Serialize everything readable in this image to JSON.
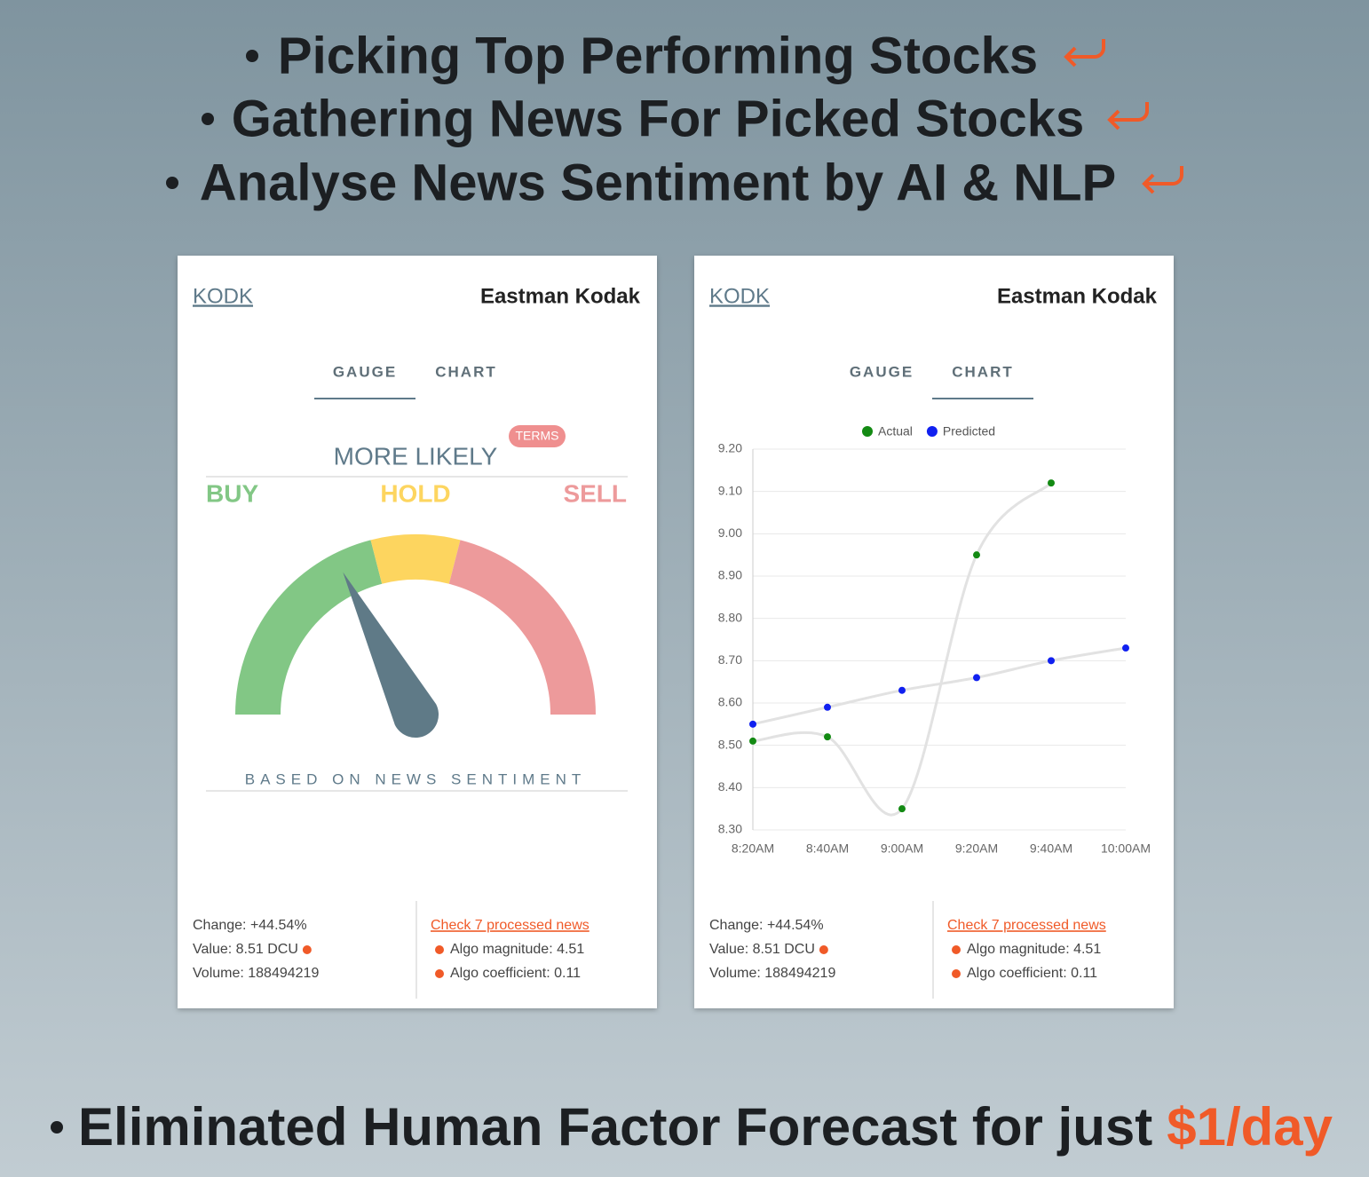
{
  "bullets": [
    "Picking Top Performing Stocks",
    "Gathering News For Picked Stocks",
    "Analyse News Sentiment by AI & NLP"
  ],
  "footer": {
    "text": "Eliminated Human Factor Forecast for just",
    "highlight": "$1/day"
  },
  "cards": [
    {
      "ticker": "KODK",
      "name": "Eastman Kodak",
      "tabs": [
        "GAUGE",
        "CHART"
      ],
      "active_tab": 0,
      "stats": [
        "Change: +44.54%",
        "Value: 8.51 DCU",
        "Volume: 188494219"
      ],
      "news_link": "Check 7 processed news",
      "algo": [
        "Algo magnitude: 4.51",
        "Algo coefficient: 0.11"
      ]
    },
    {
      "ticker": "KODK",
      "name": "Eastman Kodak",
      "tabs": [
        "GAUGE",
        "CHART"
      ],
      "active_tab": 1,
      "stats": [
        "Change: +44.54%",
        "Value: 8.51 DCU",
        "Volume: 188494219"
      ],
      "news_link": "Check 7 processed news",
      "algo": [
        "Algo magnitude: 4.51",
        "Algo coefficient: 0.11"
      ]
    }
  ],
  "gauge": {
    "heading": "MORE LIKELY",
    "terms": "TERMS",
    "labels": [
      "BUY",
      "HOLD",
      "SELL"
    ],
    "colors": [
      "#82c785",
      "#fdd55f",
      "#ed9a9b"
    ],
    "caption": "BASED ON NEWS SENTIMENT",
    "range": [
      0,
      100
    ],
    "band_limits": [
      42,
      58
    ],
    "value": 35
  },
  "chart_data": {
    "type": "line",
    "categories": [
      "8:20AM",
      "8:40AM",
      "9:00AM",
      "9:20AM",
      "9:40AM",
      "10:00AM"
    ],
    "series": [
      {
        "name": "Actual",
        "color": "#138a13",
        "values": [
          8.51,
          8.52,
          8.35,
          8.95,
          9.12,
          null
        ]
      },
      {
        "name": "Predicted",
        "color": "#1020f0",
        "values": [
          8.55,
          8.59,
          8.63,
          8.66,
          8.7,
          8.73
        ]
      }
    ],
    "ylim": [
      8.3,
      9.2
    ],
    "yticks": [
      {
        "value": 8.3,
        "label": "8.30"
      },
      {
        "value": 8.4,
        "label": "8.40"
      },
      {
        "value": 8.5,
        "label": "8.50"
      },
      {
        "value": 8.6,
        "label": "8.60"
      },
      {
        "value": 8.7,
        "label": "8.70"
      },
      {
        "value": 8.8,
        "label": "8.80"
      },
      {
        "value": 8.9,
        "label": "8.90"
      },
      {
        "value": 9.0,
        "label": "9.00"
      },
      {
        "value": 9.1,
        "label": "9.10"
      },
      {
        "value": 9.2,
        "label": "9.20"
      }
    ],
    "grid": true,
    "line_color": "#e2e2e2",
    "legend": "top"
  }
}
